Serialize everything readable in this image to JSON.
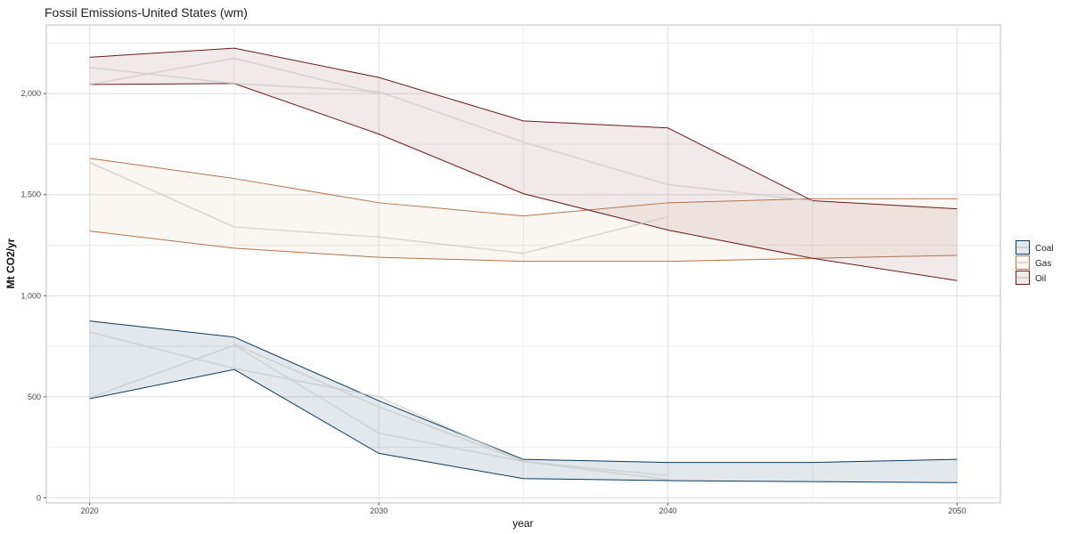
{
  "chart_data": {
    "type": "area",
    "title": "Fossil Emissions-United States (wm)",
    "xlabel": "year",
    "ylabel": "Mt CO2/yr",
    "xlim": [
      2018.5,
      2051.5
    ],
    "ylim": [
      -25,
      2340
    ],
    "x_ticks": [
      2020,
      2030,
      2040,
      2050
    ],
    "x_tick_labels": [
      "2020",
      "2030",
      "2040",
      "2050"
    ],
    "y_ticks": [
      0,
      500,
      1000,
      1500,
      2000
    ],
    "y_tick_labels": [
      "0",
      "500",
      "1,000",
      "1,500",
      "2,000"
    ],
    "grid": true,
    "legend_position": "right",
    "series": [
      {
        "name": "Coal",
        "color": "#0b3a5c",
        "fill": "#1f4e66",
        "band": [
          {
            "x": 2020,
            "low": 490,
            "high": 875
          },
          {
            "x": 2025,
            "low": 635,
            "high": 795
          },
          {
            "x": 2030,
            "low": 220,
            "high": 480
          },
          {
            "x": 2035,
            "low": 95,
            "high": 190
          },
          {
            "x": 2040,
            "low": 85,
            "high": 175
          },
          {
            "x": 2045,
            "low": 80,
            "high": 175
          },
          {
            "x": 2050,
            "low": 75,
            "high": 190
          }
        ],
        "model_lines": [
          [
            [
              2020,
              820
            ],
            [
              2025,
              640
            ],
            [
              2030,
              500
            ],
            [
              2035,
              180
            ],
            [
              2040,
              110
            ]
          ],
          [
            [
              2020,
              495
            ],
            [
              2025,
              755
            ],
            [
              2030,
              320
            ],
            [
              2035,
              180
            ],
            [
              2040,
              90
            ]
          ],
          [
            [
              2025,
              760
            ],
            [
              2030,
              450
            ],
            [
              2035,
              180
            ]
          ]
        ]
      },
      {
        "name": "Gas",
        "color": "#b5734a",
        "fill": "#d9b99b",
        "band": [
          {
            "x": 2020,
            "low": 1320,
            "high": 1680
          },
          {
            "x": 2025,
            "low": 1235,
            "high": 1580
          },
          {
            "x": 2030,
            "low": 1190,
            "high": 1460
          },
          {
            "x": 2035,
            "low": 1170,
            "high": 1395
          },
          {
            "x": 2040,
            "low": 1170,
            "high": 1460
          },
          {
            "x": 2045,
            "low": 1185,
            "high": 1480
          },
          {
            "x": 2050,
            "low": 1200,
            "high": 1480
          }
        ],
        "model_lines": [
          [
            [
              2020,
              1660
            ],
            [
              2025,
              1340
            ],
            [
              2030,
              1290
            ],
            [
              2035,
              1210
            ],
            [
              2040,
              1390
            ]
          ]
        ]
      },
      {
        "name": "Oil",
        "color": "#6b1a1a",
        "fill": "#9b5e5e",
        "band": [
          {
            "x": 2020,
            "low": 2045,
            "high": 2180
          },
          {
            "x": 2025,
            "low": 2050,
            "high": 2225
          },
          {
            "x": 2030,
            "low": 1800,
            "high": 2080
          },
          {
            "x": 2035,
            "low": 1505,
            "high": 1865
          },
          {
            "x": 2040,
            "low": 1325,
            "high": 1830
          },
          {
            "x": 2045,
            "low": 1185,
            "high": 1470
          },
          {
            "x": 2050,
            "low": 1075,
            "high": 1430
          }
        ],
        "model_lines": [
          [
            [
              2020,
              2130
            ],
            [
              2025,
              2050
            ],
            [
              2030,
              2010
            ],
            [
              2035,
              1760
            ],
            [
              2040,
              1550
            ],
            [
              2045,
              1470
            ]
          ],
          [
            [
              2020,
              2045
            ],
            [
              2025,
              2175
            ],
            [
              2030,
              2000
            ]
          ]
        ]
      }
    ]
  }
}
